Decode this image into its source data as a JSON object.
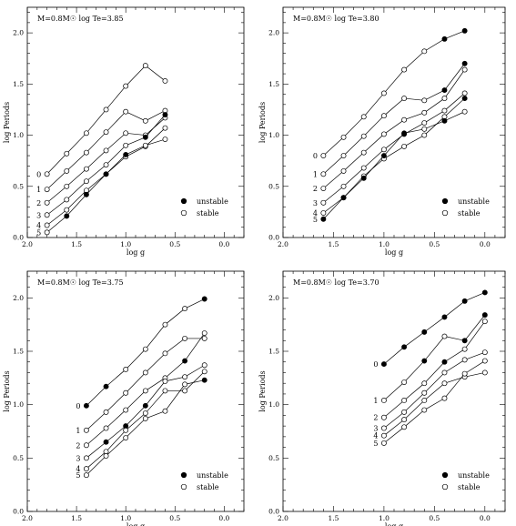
{
  "chart_data": [
    {
      "type": "line",
      "title": "M=0.8M☉ log Te=3.85",
      "xlabel": "log g",
      "ylabel": "log Periods",
      "xlim": [
        2.0,
        -0.2
      ],
      "ylim": [
        0.0,
        2.25
      ],
      "xticks": [
        "2.0",
        "1.5",
        "1.0",
        "0.5",
        "0.0"
      ],
      "yticks": [
        "0.0",
        "0.5",
        "1.0",
        "1.5",
        "2.0"
      ],
      "legend": {
        "position": "bottom-right",
        "entries": [
          {
            "label": "unstable",
            "marker": "filled"
          },
          {
            "label": "stable",
            "marker": "open"
          }
        ]
      },
      "series": [
        {
          "name": "0",
          "points": [
            [
              1.8,
              0.62,
              "s"
            ],
            [
              1.6,
              0.82,
              "s"
            ],
            [
              1.4,
              1.02,
              "s"
            ],
            [
              1.2,
              1.25,
              "s"
            ],
            [
              1.0,
              1.48,
              "s"
            ],
            [
              0.8,
              1.68,
              "s"
            ],
            [
              0.6,
              1.53,
              "s"
            ]
          ]
        },
        {
          "name": "1",
          "points": [
            [
              1.8,
              0.47,
              "s"
            ],
            [
              1.6,
              0.65,
              "s"
            ],
            [
              1.4,
              0.83,
              "s"
            ],
            [
              1.2,
              1.03,
              "s"
            ],
            [
              1.0,
              1.23,
              "s"
            ],
            [
              0.8,
              1.14,
              "s"
            ],
            [
              0.6,
              1.24,
              "s"
            ]
          ]
        },
        {
          "name": "2",
          "points": [
            [
              1.8,
              0.34,
              "s"
            ],
            [
              1.6,
              0.5,
              "s"
            ],
            [
              1.4,
              0.67,
              "s"
            ],
            [
              1.2,
              0.85,
              "s"
            ],
            [
              1.0,
              1.02,
              "s"
            ],
            [
              0.8,
              1.0,
              "s"
            ],
            [
              0.6,
              1.17,
              "s"
            ]
          ]
        },
        {
          "name": "3",
          "points": [
            [
              1.8,
              0.22,
              "s"
            ],
            [
              1.6,
              0.37,
              "s"
            ],
            [
              1.4,
              0.55,
              "s"
            ],
            [
              1.2,
              0.71,
              "s"
            ],
            [
              1.0,
              0.9,
              "s"
            ],
            [
              0.8,
              0.98,
              "u"
            ],
            [
              0.6,
              1.2,
              "u"
            ]
          ]
        },
        {
          "name": "4",
          "points": [
            [
              1.8,
              0.12,
              "s"
            ],
            [
              1.6,
              0.27,
              "s"
            ],
            [
              1.4,
              0.46,
              "s"
            ],
            [
              1.2,
              0.62,
              "s"
            ],
            [
              1.0,
              0.79,
              "s"
            ],
            [
              0.8,
              0.89,
              "s"
            ],
            [
              0.6,
              1.07,
              "s"
            ]
          ]
        },
        {
          "name": "5",
          "points": [
            [
              1.8,
              0.05,
              "s"
            ],
            [
              1.6,
              0.21,
              "u"
            ],
            [
              1.4,
              0.42,
              "u"
            ],
            [
              1.2,
              0.62,
              "u"
            ],
            [
              1.0,
              0.81,
              "u"
            ],
            [
              0.8,
              0.9,
              "s"
            ],
            [
              0.6,
              0.96,
              "s"
            ]
          ]
        }
      ]
    },
    {
      "type": "line",
      "title": "M=0.8M☉ log Te=3.80",
      "xlabel": "log g",
      "ylabel": "log Periods",
      "xlim": [
        2.0,
        -0.2
      ],
      "ylim": [
        0.0,
        2.25
      ],
      "xticks": [
        "2.0",
        "1.5",
        "1.0",
        "0.5",
        "0.0"
      ],
      "yticks": [
        "0.0",
        "0.5",
        "1.0",
        "1.5",
        "2.0"
      ],
      "legend": {
        "position": "bottom-right",
        "entries": [
          {
            "label": "unstable",
            "marker": "filled"
          },
          {
            "label": "stable",
            "marker": "open"
          }
        ]
      },
      "series": [
        {
          "name": "0",
          "points": [
            [
              1.6,
              0.8,
              "s"
            ],
            [
              1.4,
              0.98,
              "s"
            ],
            [
              1.2,
              1.18,
              "s"
            ],
            [
              1.0,
              1.41,
              "s"
            ],
            [
              0.8,
              1.64,
              "s"
            ],
            [
              0.6,
              1.82,
              "s"
            ],
            [
              0.4,
              1.94,
              "u"
            ],
            [
              0.2,
              2.02,
              "u"
            ]
          ]
        },
        {
          "name": "1",
          "points": [
            [
              1.6,
              0.62,
              "s"
            ],
            [
              1.4,
              0.8,
              "s"
            ],
            [
              1.2,
              0.99,
              "s"
            ],
            [
              1.0,
              1.19,
              "s"
            ],
            [
              0.8,
              1.36,
              "s"
            ],
            [
              0.6,
              1.34,
              "s"
            ],
            [
              0.4,
              1.44,
              "u"
            ],
            [
              0.2,
              1.7,
              "u"
            ]
          ]
        },
        {
          "name": "2",
          "points": [
            [
              1.6,
              0.48,
              "s"
            ],
            [
              1.4,
              0.65,
              "s"
            ],
            [
              1.2,
              0.83,
              "s"
            ],
            [
              1.0,
              1.01,
              "s"
            ],
            [
              0.8,
              1.15,
              "s"
            ],
            [
              0.6,
              1.22,
              "s"
            ],
            [
              0.4,
              1.36,
              "s"
            ],
            [
              0.2,
              1.64,
              "s"
            ]
          ]
        },
        {
          "name": "3",
          "points": [
            [
              1.6,
              0.34,
              "s"
            ],
            [
              1.4,
              0.5,
              "s"
            ],
            [
              1.2,
              0.68,
              "s"
            ],
            [
              1.0,
              0.86,
              "s"
            ],
            [
              0.8,
              1.01,
              "u"
            ],
            [
              0.6,
              1.12,
              "s"
            ],
            [
              0.4,
              1.24,
              "s"
            ],
            [
              0.2,
              1.41,
              "s"
            ]
          ]
        },
        {
          "name": "4",
          "points": [
            [
              1.6,
              0.24,
              "s"
            ],
            [
              1.4,
              0.39,
              "s"
            ],
            [
              1.2,
              0.6,
              "s"
            ],
            [
              1.0,
              0.77,
              "s"
            ],
            [
              0.8,
              0.89,
              "s"
            ],
            [
              0.6,
              1.0,
              "s"
            ],
            [
              0.4,
              1.18,
              "s"
            ],
            [
              0.2,
              1.36,
              "u"
            ]
          ]
        },
        {
          "name": "5",
          "points": [
            [
              1.6,
              0.18,
              "u"
            ],
            [
              1.4,
              0.39,
              "u"
            ],
            [
              1.2,
              0.58,
              "u"
            ],
            [
              1.0,
              0.8,
              "u"
            ],
            [
              0.8,
              1.02,
              "u"
            ],
            [
              0.6,
              1.06,
              "s"
            ],
            [
              0.4,
              1.14,
              "u"
            ],
            [
              0.2,
              1.23,
              "s"
            ]
          ]
        }
      ]
    },
    {
      "type": "line",
      "title": "M=0.8M☉ log Te=3.75",
      "xlabel": "log g",
      "ylabel": "log Periods",
      "xlim": [
        2.0,
        -0.2
      ],
      "ylim": [
        0.0,
        2.25
      ],
      "xticks": [
        "2.0",
        "1.5",
        "1.0",
        "0.5",
        "0.0"
      ],
      "yticks": [
        "0.0",
        "0.5",
        "1.0",
        "1.5",
        "2.0"
      ],
      "legend": {
        "position": "bottom-right",
        "entries": [
          {
            "label": "unstable",
            "marker": "filled"
          },
          {
            "label": "stable",
            "marker": "open"
          }
        ]
      },
      "series": [
        {
          "name": "0",
          "points": [
            [
              1.4,
              0.99,
              "u"
            ],
            [
              1.2,
              1.17,
              "u"
            ],
            [
              1.0,
              1.33,
              "s"
            ],
            [
              0.8,
              1.52,
              "s"
            ],
            [
              0.6,
              1.75,
              "s"
            ],
            [
              0.4,
              1.9,
              "s"
            ],
            [
              0.2,
              1.99,
              "u"
            ]
          ]
        },
        {
          "name": "1",
          "points": [
            [
              1.4,
              0.76,
              "s"
            ],
            [
              1.2,
              0.93,
              "s"
            ],
            [
              1.0,
              1.11,
              "s"
            ],
            [
              0.8,
              1.3,
              "s"
            ],
            [
              0.6,
              1.48,
              "s"
            ],
            [
              0.4,
              1.62,
              "s"
            ],
            [
              0.2,
              1.62,
              "s"
            ]
          ]
        },
        {
          "name": "2",
          "points": [
            [
              1.4,
              0.62,
              "s"
            ],
            [
              1.2,
              0.78,
              "s"
            ],
            [
              1.0,
              0.95,
              "s"
            ],
            [
              0.8,
              1.13,
              "s"
            ],
            [
              0.6,
              1.25,
              "s"
            ],
            [
              0.4,
              1.41,
              "u"
            ],
            [
              0.2,
              1.67,
              "s"
            ]
          ]
        },
        {
          "name": "3",
          "points": [
            [
              1.4,
              0.5,
              "s"
            ],
            [
              1.2,
              0.65,
              "u"
            ],
            [
              1.0,
              0.8,
              "u"
            ],
            [
              0.8,
              0.99,
              "u"
            ],
            [
              0.6,
              1.22,
              "s"
            ],
            [
              0.4,
              1.26,
              "s"
            ],
            [
              0.2,
              1.37,
              "s"
            ]
          ]
        },
        {
          "name": "4",
          "points": [
            [
              1.4,
              0.4,
              "s"
            ],
            [
              1.2,
              0.56,
              "s"
            ],
            [
              1.0,
              0.76,
              "s"
            ],
            [
              0.8,
              0.92,
              "s"
            ],
            [
              0.6,
              1.13,
              "s"
            ],
            [
              0.4,
              1.13,
              "s"
            ],
            [
              0.2,
              1.31,
              "s"
            ]
          ]
        },
        {
          "name": "5",
          "points": [
            [
              1.4,
              0.34,
              "s"
            ],
            [
              1.2,
              0.52,
              "s"
            ],
            [
              1.0,
              0.69,
              "s"
            ],
            [
              0.8,
              0.87,
              "s"
            ],
            [
              0.6,
              0.94,
              "s"
            ],
            [
              0.4,
              1.19,
              "s"
            ],
            [
              0.2,
              1.23,
              "u"
            ]
          ]
        }
      ]
    },
    {
      "type": "line",
      "title": "M=0.8M☉ log Te=3.70",
      "xlabel": "log g",
      "ylabel": "log Periods",
      "xlim": [
        2.0,
        -0.2
      ],
      "ylim": [
        0.0,
        2.25
      ],
      "xticks": [
        "2.0",
        "1.5",
        "1.0",
        "0.5",
        "0.0"
      ],
      "yticks": [
        "0.0",
        "0.5",
        "1.0",
        "1.5",
        "2.0"
      ],
      "legend": {
        "position": "bottom-right",
        "entries": [
          {
            "label": "unstable",
            "marker": "filled"
          },
          {
            "label": "stable",
            "marker": "open"
          }
        ]
      },
      "series": [
        {
          "name": "0",
          "points": [
            [
              1.0,
              1.38,
              "u"
            ],
            [
              0.8,
              1.54,
              "u"
            ],
            [
              0.6,
              1.68,
              "u"
            ],
            [
              0.4,
              1.82,
              "u"
            ],
            [
              0.2,
              1.97,
              "u"
            ],
            [
              0.0,
              2.05,
              "u"
            ]
          ]
        },
        {
          "name": "1",
          "points": [
            [
              1.0,
              1.04,
              "s"
            ],
            [
              0.8,
              1.21,
              "s"
            ],
            [
              0.6,
              1.41,
              "u"
            ],
            [
              0.4,
              1.64,
              "s"
            ],
            [
              0.2,
              1.6,
              "u"
            ],
            [
              0.0,
              1.84,
              "u"
            ]
          ]
        },
        {
          "name": "2",
          "points": [
            [
              1.0,
              0.88,
              "s"
            ],
            [
              0.8,
              1.04,
              "s"
            ],
            [
              0.6,
              1.2,
              "s"
            ],
            [
              0.4,
              1.4,
              "u"
            ],
            [
              0.2,
              1.52,
              "s"
            ],
            [
              0.0,
              1.78,
              "s"
            ]
          ]
        },
        {
          "name": "3",
          "points": [
            [
              1.0,
              0.78,
              "s"
            ],
            [
              0.8,
              0.93,
              "s"
            ],
            [
              0.6,
              1.11,
              "s"
            ],
            [
              0.4,
              1.3,
              "s"
            ],
            [
              0.2,
              1.42,
              "s"
            ],
            [
              0.0,
              1.49,
              "s"
            ]
          ]
        },
        {
          "name": "4",
          "points": [
            [
              1.0,
              0.71,
              "s"
            ],
            [
              0.8,
              0.86,
              "s"
            ],
            [
              0.6,
              1.04,
              "s"
            ],
            [
              0.4,
              1.2,
              "s"
            ],
            [
              0.2,
              1.26,
              "s"
            ],
            [
              0.0,
              1.3,
              "s"
            ]
          ]
        },
        {
          "name": "5",
          "points": [
            [
              1.0,
              0.64,
              "s"
            ],
            [
              0.8,
              0.79,
              "s"
            ],
            [
              0.6,
              0.95,
              "s"
            ],
            [
              0.4,
              1.06,
              "s"
            ],
            [
              0.2,
              1.29,
              "s"
            ],
            [
              0.0,
              1.41,
              "s"
            ]
          ]
        }
      ]
    }
  ]
}
